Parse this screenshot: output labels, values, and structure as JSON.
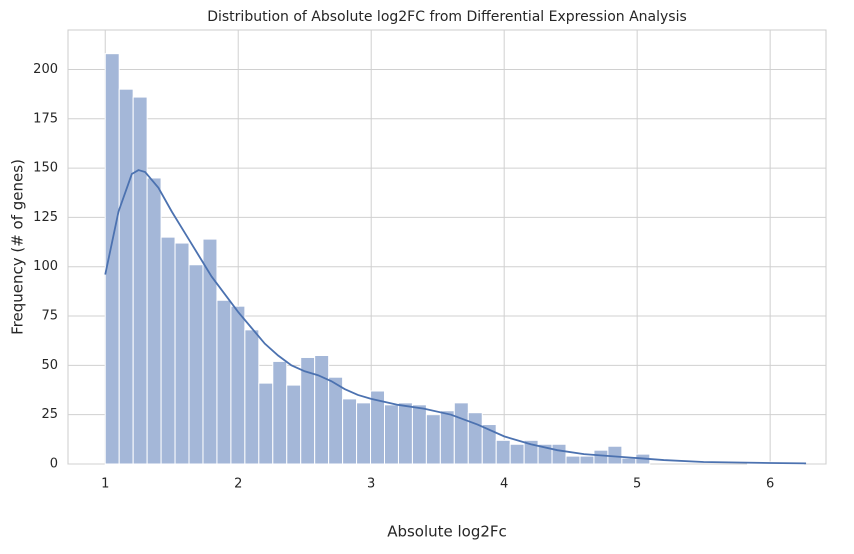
{
  "chart_data": {
    "type": "histogram",
    "title": "Distribution of Absolute log2FC from Differential Expression Analysis",
    "x_label": "Absolute log2Fc",
    "y_label": "Frequency (# of genes)",
    "bins": [
      1,
      1.105,
      1.21,
      1.315,
      1.42,
      1.525,
      1.63,
      1.735,
      1.84,
      1.945,
      2.05,
      2.155,
      2.26,
      2.365,
      2.47,
      2.575,
      2.68,
      2.785,
      2.89,
      2.995,
      3.1,
      3.205,
      3.31,
      3.415,
      3.52,
      3.625,
      3.73,
      3.835,
      3.94,
      4.045,
      4.15,
      4.255,
      4.36,
      4.465,
      4.57,
      4.675,
      4.78,
      4.885,
      4.99,
      5.095,
      5.2,
      5.305,
      5.41,
      5.515,
      5.62,
      5.725,
      5.83,
      5.935,
      6.04,
      6.145,
      6.25
    ],
    "values": [
      208,
      190,
      186,
      145,
      115,
      112,
      101,
      114,
      83,
      80,
      68,
      41,
      52,
      40,
      54,
      55,
      44,
      33,
      31,
      37,
      30,
      31,
      30,
      25,
      27,
      31,
      26,
      20,
      12,
      10,
      12,
      10,
      10,
      4,
      4,
      7,
      9,
      3,
      5,
      0,
      0,
      0,
      0,
      0,
      0,
      0,
      1,
      1,
      1,
      1
    ],
    "color": "#a4b7d8",
    "kde": {
      "color": "#4c72b0",
      "x": [
        1.0,
        1.1,
        1.2,
        1.25,
        1.3,
        1.4,
        1.5,
        1.6,
        1.7,
        1.8,
        1.9,
        2.0,
        2.1,
        2.2,
        2.3,
        2.4,
        2.5,
        2.6,
        2.7,
        2.8,
        2.9,
        3.0,
        3.2,
        3.4,
        3.6,
        3.8,
        4.0,
        4.2,
        4.4,
        4.6,
        4.8,
        5.0,
        5.2,
        5.5,
        6.0,
        6.27
      ],
      "values": [
        96,
        128,
        147,
        149,
        148,
        140,
        128,
        117,
        106,
        95,
        86,
        77,
        69,
        61,
        55,
        50,
        47,
        45,
        42,
        38,
        35,
        33,
        30,
        28,
        25,
        20,
        14,
        10,
        7,
        5,
        4,
        3,
        2,
        1,
        0.5,
        0.3
      ]
    },
    "xlim": [
      0.72,
      6.42
    ],
    "ylim": [
      0,
      220
    ],
    "xticks": [
      1,
      2,
      3,
      4,
      5,
      6
    ],
    "yticks": [
      0,
      25,
      50,
      75,
      100,
      125,
      150,
      175,
      200
    ],
    "grid": true
  }
}
